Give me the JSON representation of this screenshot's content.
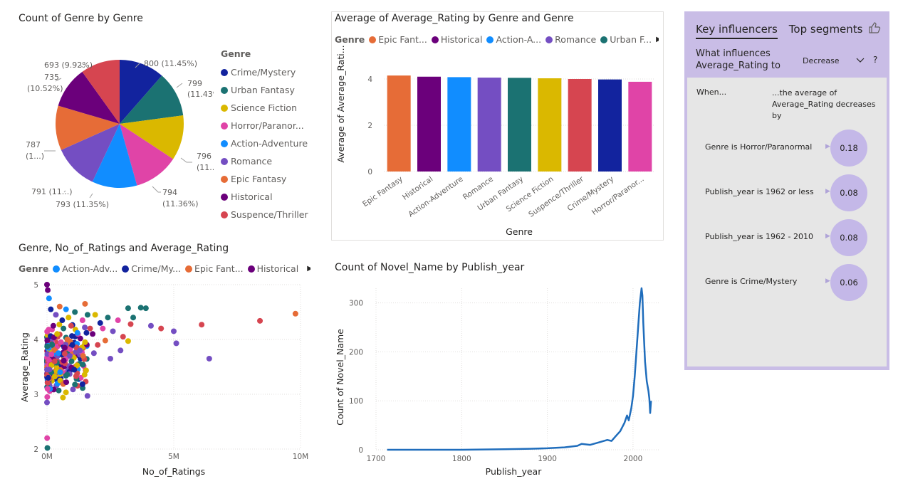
{
  "pie_visual": {
    "title": "Count of Genre by Genre",
    "legend_title": "Genre",
    "labels": [
      "800 (11.45%)",
      "799",
      "(11.43%)",
      "796",
      "(11...)",
      "794",
      "(11.36%)",
      "793 (11.35%)",
      "791 (11...)",
      "787",
      "(1...)",
      "735",
      "(10.52%)",
      "693 (9.92%)"
    ]
  },
  "bar_visual": {
    "title": "Average of Average_Rating by Genre and Genre",
    "legend_title": "Genre",
    "legend_items": [
      "Epic Fant...",
      "Historical",
      "Action-A...",
      "Romance",
      "Urban F..."
    ],
    "tick_labels": [
      "Epic Fantasy",
      "Historical",
      "Action-Adventure",
      "Romance",
      "Urban Fantasy",
      "Science Fiction",
      "Suspence/Thriller",
      "Crime/Mystery",
      "Horror/Paranor..."
    ],
    "y_tick_labels": [
      "0",
      "2",
      "4"
    ],
    "xlabel": "Genre",
    "ylabel": "Average of Average_Rati..."
  },
  "scatter_visual": {
    "title": "Genre, No_of_Ratings and Average_Rating",
    "legend_title": "Genre",
    "legend_items": [
      "Action-Adv...",
      "Crime/My...",
      "Epic Fant...",
      "Historical"
    ],
    "x_tick_labels": [
      "0M",
      "5M",
      "10M"
    ],
    "y_tick_labels": [
      "2",
      "3",
      "4",
      "5"
    ],
    "xlabel": "No_of_Ratings",
    "ylabel": "Average_Rating"
  },
  "line_visual": {
    "title": "Count of Novel_Name by Publish_year",
    "x_tick_labels": [
      "1700",
      "1800",
      "1900",
      "2000"
    ],
    "y_tick_labels": [
      "0",
      "100",
      "200",
      "300"
    ],
    "xlabel": "Publish_year",
    "ylabel": "Count of Novel_Name"
  },
  "key_influencers": {
    "tabs": [
      "Key influencers",
      "Top segments"
    ],
    "question": "What influences Average_Rating to",
    "dropdown_value": "Decrease",
    "help": "?",
    "when_label": "When...",
    "avg_text": "...the average of Average_Rating decreases by",
    "rows": [
      {
        "label": "Genre is Horror/Paranormal",
        "value": "0.18"
      },
      {
        "label": "Publish_year is 1962 or less",
        "value": "0.08"
      },
      {
        "label": "Publish_year is 1962 - 2010",
        "value": "0.08"
      },
      {
        "label": "Genre is Crime/Mystery",
        "value": "0.06"
      }
    ]
  },
  "genre_colors": {
    "Crime/Mystery": "#12239e",
    "Urban Fantasy": "#1b7272",
    "Science Fiction": "#dab800",
    "Horror/Paranormal": "#e044a7",
    "Action-Adventure": "#118dff",
    "Romance": "#744ec2",
    "Epic Fantasy": "#e66c37",
    "Historical": "#6b007b",
    "Suspence/Thriller": "#d64550"
  },
  "chart_data": [
    {
      "type": "pie",
      "title": "Count of Genre by Genre",
      "categories": [
        "Crime/Mystery",
        "Urban Fantasy",
        "Science Fiction",
        "Horror/Paranor...",
        "Action-Adventure",
        "Romance",
        "Epic Fantasy",
        "Historical",
        "Suspence/Thriller"
      ],
      "values": [
        800,
        799,
        796,
        794,
        793,
        791,
        787,
        735,
        693
      ],
      "colors": [
        "#12239e",
        "#1b7272",
        "#dab800",
        "#e044a7",
        "#118dff",
        "#744ec2",
        "#e66c37",
        "#6b007b",
        "#d64550"
      ],
      "legend": "right"
    },
    {
      "type": "bar",
      "title": "Average of Average_Rating by Genre and Genre",
      "categories": [
        "Epic Fantasy",
        "Historical",
        "Action-Adventure",
        "Romance",
        "Urban Fantasy",
        "Science Fiction",
        "Suspence/Thriller",
        "Crime/Mystery",
        "Horror/Paranormal"
      ],
      "values": [
        4.15,
        4.1,
        4.08,
        4.06,
        4.05,
        4.03,
        4.0,
        3.98,
        3.88
      ],
      "colors": [
        "#e66c37",
        "#6b007b",
        "#118dff",
        "#744ec2",
        "#1b7272",
        "#dab800",
        "#d64550",
        "#12239e",
        "#e044a7"
      ],
      "xlabel": "Genre",
      "ylabel": "Average of Average_Rating",
      "ylim": [
        0,
        4.6
      ],
      "yticks": [
        0,
        2,
        4
      ]
    },
    {
      "type": "scatter",
      "title": "Genre, No_of_Ratings and Average_Rating",
      "xlabel": "No_of_Ratings",
      "ylabel": "Average_Rating",
      "xlim": [
        0,
        10000000
      ],
      "ylim": [
        2,
        5
      ],
      "points": [
        {
          "x": 9800000,
          "y": 4.47,
          "c": "#e66c37"
        },
        {
          "x": 8400000,
          "y": 4.34,
          "c": "#d64550"
        },
        {
          "x": 6100000,
          "y": 4.27,
          "c": "#d64550"
        },
        {
          "x": 6400000,
          "y": 3.65,
          "c": "#744ec2"
        },
        {
          "x": 5100000,
          "y": 3.93,
          "c": "#744ec2"
        },
        {
          "x": 5000000,
          "y": 4.15,
          "c": "#744ec2"
        },
        {
          "x": 4500000,
          "y": 4.2,
          "c": "#d64550"
        },
        {
          "x": 4100000,
          "y": 4.25,
          "c": "#744ec2"
        },
        {
          "x": 3900000,
          "y": 4.57,
          "c": "#1b7272"
        },
        {
          "x": 3700000,
          "y": 4.58,
          "c": "#1b7272"
        },
        {
          "x": 3200000,
          "y": 4.57,
          "c": "#1b7272"
        },
        {
          "x": 3400000,
          "y": 4.4,
          "c": "#1b7272"
        },
        {
          "x": 3300000,
          "y": 4.28,
          "c": "#d64550"
        },
        {
          "x": 3000000,
          "y": 4.05,
          "c": "#d64550"
        },
        {
          "x": 3200000,
          "y": 3.97,
          "c": "#dab800"
        },
        {
          "x": 2900000,
          "y": 3.8,
          "c": "#744ec2"
        },
        {
          "x": 2800000,
          "y": 4.35,
          "c": "#e044a7"
        },
        {
          "x": 2600000,
          "y": 4.15,
          "c": "#744ec2"
        },
        {
          "x": 2500000,
          "y": 3.65,
          "c": "#744ec2"
        },
        {
          "x": 2400000,
          "y": 4.4,
          "c": "#1b7272"
        },
        {
          "x": 2300000,
          "y": 3.98,
          "c": "#e66c37"
        },
        {
          "x": 2200000,
          "y": 4.2,
          "c": "#e044a7"
        },
        {
          "x": 2100000,
          "y": 4.3,
          "c": "#12239e"
        },
        {
          "x": 2000000,
          "y": 3.9,
          "c": "#d64550"
        },
        {
          "x": 1900000,
          "y": 4.45,
          "c": "#dab800"
        },
        {
          "x": 1800000,
          "y": 4.1,
          "c": "#6b007b"
        },
        {
          "x": 1850000,
          "y": 3.75,
          "c": "#744ec2"
        },
        {
          "x": 1700000,
          "y": 4.2,
          "c": "#d64550"
        },
        {
          "x": 1600000,
          "y": 4.45,
          "c": "#1b7272"
        },
        {
          "x": 1500000,
          "y": 3.95,
          "c": "#dab800"
        },
        {
          "x": 1400000,
          "y": 4.35,
          "c": "#e044a7"
        },
        {
          "x": 1500000,
          "y": 4.65,
          "c": "#e66c37"
        },
        {
          "x": 1300000,
          "y": 3.8,
          "c": "#744ec2"
        },
        {
          "x": 1200000,
          "y": 4.12,
          "c": "#118dff"
        },
        {
          "x": 1100000,
          "y": 4.5,
          "c": "#1b7272"
        },
        {
          "x": 1000000,
          "y": 3.9,
          "c": "#12239e"
        },
        {
          "x": 950000,
          "y": 4.25,
          "c": "#d64550"
        },
        {
          "x": 900000,
          "y": 3.7,
          "c": "#744ec2"
        },
        {
          "x": 850000,
          "y": 4.4,
          "c": "#dab800"
        },
        {
          "x": 800000,
          "y": 4.0,
          "c": "#e66c37"
        },
        {
          "x": 750000,
          "y": 4.55,
          "c": "#118dff"
        },
        {
          "x": 700000,
          "y": 3.85,
          "c": "#6b007b"
        },
        {
          "x": 650000,
          "y": 4.2,
          "c": "#1b7272"
        },
        {
          "x": 600000,
          "y": 4.35,
          "c": "#12239e"
        },
        {
          "x": 550000,
          "y": 3.95,
          "c": "#e044a7"
        },
        {
          "x": 500000,
          "y": 4.6,
          "c": "#e66c37"
        },
        {
          "x": 450000,
          "y": 3.75,
          "c": "#118dff"
        },
        {
          "x": 400000,
          "y": 4.1,
          "c": "#dab800"
        },
        {
          "x": 350000,
          "y": 4.45,
          "c": "#744ec2"
        },
        {
          "x": 300000,
          "y": 3.6,
          "c": "#d64550"
        },
        {
          "x": 250000,
          "y": 4.25,
          "c": "#6b007b"
        },
        {
          "x": 200000,
          "y": 3.9,
          "c": "#1b7272"
        },
        {
          "x": 150000,
          "y": 4.55,
          "c": "#12239e"
        },
        {
          "x": 100000,
          "y": 3.45,
          "c": "#744ec2"
        },
        {
          "x": 80000,
          "y": 4.75,
          "c": "#118dff"
        },
        {
          "x": 50000,
          "y": 3.3,
          "c": "#12239e"
        },
        {
          "x": 30000,
          "y": 4.9,
          "c": "#6b007b"
        },
        {
          "x": 20000,
          "y": 3.1,
          "c": "#e044a7"
        },
        {
          "x": 10000,
          "y": 2.95,
          "c": "#e044a7"
        },
        {
          "x": 5000,
          "y": 2.2,
          "c": "#e044a7"
        },
        {
          "x": 15000,
          "y": 2.02,
          "c": "#1b7272"
        },
        {
          "x": 0,
          "y": 5.0,
          "c": "#6b007b"
        },
        {
          "x": 0,
          "y": 2.85,
          "c": "#744ec2"
        }
      ]
    },
    {
      "type": "line",
      "title": "Count of Novel_Name by Publish_year",
      "xlabel": "Publish_year",
      "ylabel": "Count of Novel_Name",
      "xlim": [
        1700,
        2030
      ],
      "ylim": [
        0,
        330
      ],
      "x": [
        1713,
        1750,
        1800,
        1850,
        1880,
        1900,
        1920,
        1935,
        1940,
        1950,
        1960,
        1970,
        1975,
        1980,
        1985,
        1990,
        1993,
        1995,
        1998,
        2000,
        2002,
        2004,
        2006,
        2008,
        2010,
        2011,
        2012,
        2014,
        2016,
        2018,
        2019,
        2020,
        2021
      ],
      "values": [
        0,
        0,
        0,
        1,
        2,
        3,
        5,
        8,
        12,
        10,
        15,
        20,
        18,
        28,
        38,
        55,
        70,
        60,
        85,
        110,
        150,
        200,
        250,
        300,
        330,
        315,
        260,
        180,
        140,
        120,
        105,
        75,
        100
      ]
    }
  ]
}
